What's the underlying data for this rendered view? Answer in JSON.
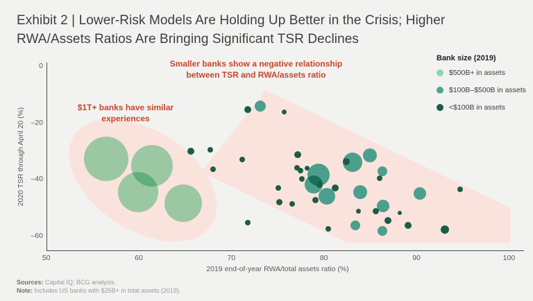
{
  "title": "Exhibit 2 | Lower-Risk Models Are Holding Up Better in the Crisis; Higher RWA/Assets Ratios Are Bringing Significant TSR Declines",
  "colors": {
    "background": "#f2f2f1",
    "highlight_pink": "#fae3dd",
    "annotation_red": "#c5472c",
    "green_500b_plus": "#9fe0bc",
    "teal_100b_500b": "#4cb3a2",
    "dark_under_100b": "#1d5c45",
    "axis_gray": "#4a4a4a"
  },
  "annotations": {
    "band_note": "Smaller banks show a negative relationship between TSR and RWA/assets ratio",
    "ellipse_note": "$1T+ banks have similar experiences"
  },
  "legend": {
    "title": "Bank size (2019)",
    "items": [
      {
        "label": "$500B+ in assets",
        "color": "#8ed7af"
      },
      {
        "label": "$100B–$500B in assets",
        "color": "#46a896"
      },
      {
        "label": "<$100B in assets",
        "color": "#1d5c45"
      }
    ]
  },
  "axes": {
    "y_label": "2020 TSR through April 20 (%)",
    "x_label": "2019 end-of-year RWA/total assets ratio (%)",
    "y_ticks": [
      {
        "label": "0",
        "value": 0
      },
      {
        "label": "–20",
        "value": -20
      },
      {
        "label": "–40",
        "value": -40
      },
      {
        "label": "–60",
        "value": -60
      }
    ],
    "x_ticks": [
      {
        "label": "50",
        "value": 50
      },
      {
        "label": "60",
        "value": 60
      },
      {
        "label": "70",
        "value": 70
      },
      {
        "label": "80",
        "value": 80
      },
      {
        "label": "90",
        "value": 90
      },
      {
        "label": "100",
        "value": 100
      }
    ]
  },
  "footer": {
    "sources_label": "Sources:",
    "sources_text": " Capital IQ; BCG analysis.",
    "note_label": "Note:",
    "note_text": " Includes US banks with $25B+ in total assets (2019)."
  },
  "chart_data": {
    "type": "scatter",
    "title": "Exhibit 2 | Lower-Risk Models Are Holding Up Better in the Crisis; Higher RWA/Assets Ratios Are Bringing Significant TSR Declines",
    "xlabel": "2019 end-of-year RWA/total assets ratio (%)",
    "ylabel": "2020 TSR through April 20 (%)",
    "xlim": [
      50,
      100
    ],
    "ylim": [
      -65,
      0
    ],
    "grid": false,
    "legend_position": "top-right",
    "series": [
      {
        "name": "$500B+ in assets",
        "css": "green",
        "color": "#9fe0bc",
        "points": [
          {
            "x": 56.5,
            "y": -32.8,
            "r": 32
          },
          {
            "x": 61.4,
            "y": -35.3,
            "r": 30
          },
          {
            "x": 59.9,
            "y": -44.6,
            "r": 29
          },
          {
            "x": 64.8,
            "y": -48.5,
            "r": 27
          }
        ]
      },
      {
        "name": "$100B–$500B in assets",
        "css": "teal",
        "color": "#4cb3a2",
        "points": [
          {
            "x": 73.1,
            "y": -14.2,
            "r": 8
          },
          {
            "x": 79.4,
            "y": -38.5,
            "r": 16
          },
          {
            "x": 78.9,
            "y": -41.9,
            "r": 13
          },
          {
            "x": 80.3,
            "y": -46.0,
            "r": 12
          },
          {
            "x": 83.1,
            "y": -34.0,
            "r": 14
          },
          {
            "x": 85.0,
            "y": -31.6,
            "r": 10
          },
          {
            "x": 86.3,
            "y": -37.2,
            "r": 7
          },
          {
            "x": 83.9,
            "y": -44.6,
            "r": 10
          },
          {
            "x": 86.4,
            "y": -49.5,
            "r": 9
          },
          {
            "x": 83.4,
            "y": -56.3,
            "r": 7
          },
          {
            "x": 86.3,
            "y": -58.3,
            "r": 7
          },
          {
            "x": 90.4,
            "y": -45.1,
            "r": 9
          }
        ]
      },
      {
        "name": "<$100B in assets",
        "css": "dark",
        "color": "#1d5c45",
        "points": [
          {
            "x": 65.6,
            "y": -30.1,
            "r": 5
          },
          {
            "x": 67.7,
            "y": -29.6,
            "r": 4
          },
          {
            "x": 68.0,
            "y": -36.5,
            "r": 4
          },
          {
            "x": 71.8,
            "y": -15.4,
            "r": 5
          },
          {
            "x": 75.7,
            "y": -16.4,
            "r": 3.5
          },
          {
            "x": 71.2,
            "y": -33.1,
            "r": 4
          },
          {
            "x": 77.2,
            "y": -31.3,
            "r": 5
          },
          {
            "x": 77.1,
            "y": -36.0,
            "r": 4
          },
          {
            "x": 77.5,
            "y": -37.0,
            "r": 4
          },
          {
            "x": 78.2,
            "y": -36.2,
            "r": 3.5
          },
          {
            "x": 77.6,
            "y": -39.9,
            "r": 4
          },
          {
            "x": 79.5,
            "y": -42.1,
            "r": 4.5
          },
          {
            "x": 81.2,
            "y": -43.1,
            "r": 5
          },
          {
            "x": 75.1,
            "y": -43.1,
            "r": 4
          },
          {
            "x": 79.1,
            "y": -47.5,
            "r": 4.5
          },
          {
            "x": 75.2,
            "y": -48.0,
            "r": 4.5
          },
          {
            "x": 76.6,
            "y": -48.7,
            "r": 4
          },
          {
            "x": 71.8,
            "y": -55.3,
            "r": 4
          },
          {
            "x": 80.5,
            "y": -57.6,
            "r": 4
          },
          {
            "x": 82.4,
            "y": -33.8,
            "r": 5
          },
          {
            "x": 86.0,
            "y": -39.7,
            "r": 4
          },
          {
            "x": 83.7,
            "y": -51.2,
            "r": 3.5
          },
          {
            "x": 85.6,
            "y": -51.2,
            "r": 4.5
          },
          {
            "x": 88.2,
            "y": -51.9,
            "r": 3
          },
          {
            "x": 86.9,
            "y": -54.6,
            "r": 5
          },
          {
            "x": 89.1,
            "y": -56.3,
            "r": 5
          },
          {
            "x": 93.1,
            "y": -57.8,
            "r": 6
          },
          {
            "x": 94.7,
            "y": -43.6,
            "r": 4
          }
        ]
      }
    ]
  }
}
